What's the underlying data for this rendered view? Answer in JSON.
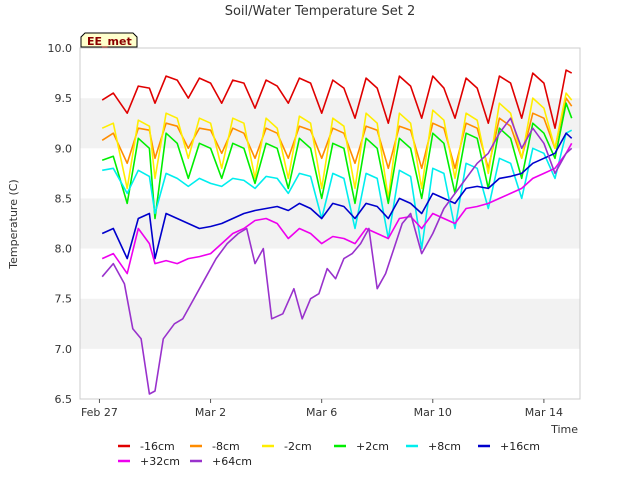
{
  "chart_data": {
    "type": "line",
    "title": "Soil/Water Temperature Set 2",
    "xlabel": "Time",
    "ylabel": "Temperature (C)",
    "badge": "EE_met",
    "xlim": [
      -0.7,
      17.3
    ],
    "ylim": [
      6.5,
      10.0
    ],
    "yticks": [
      6.5,
      7.0,
      7.5,
      8.0,
      8.5,
      9.0,
      9.5,
      10.0
    ],
    "ytick_labels": [
      "6.5",
      "7.0",
      "7.5",
      "8.0",
      "8.5",
      "9.0",
      "9.5",
      "10.0"
    ],
    "xticks": [
      0,
      4,
      8,
      12,
      16
    ],
    "xtick_labels": [
      "Feb 27",
      "Mar 2",
      "Mar 6",
      "Mar 10",
      "Mar 14"
    ],
    "grid": "horizontal bands",
    "legend_position": "bottom",
    "series": [
      {
        "name": "-16cm",
        "color": "#e00000",
        "x": [
          0.1,
          0.5,
          1.0,
          1.4,
          1.8,
          2.0,
          2.4,
          2.8,
          3.2,
          3.6,
          4.0,
          4.4,
          4.8,
          5.2,
          5.6,
          6.0,
          6.4,
          6.8,
          7.2,
          7.6,
          8.0,
          8.4,
          8.8,
          9.2,
          9.6,
          10.0,
          10.4,
          10.8,
          11.2,
          11.6,
          12.0,
          12.4,
          12.8,
          13.2,
          13.6,
          14.0,
          14.4,
          14.8,
          15.2,
          15.6,
          16.0,
          16.4,
          16.8,
          17.0
        ],
        "y": [
          9.48,
          9.55,
          9.35,
          9.62,
          9.6,
          9.45,
          9.72,
          9.68,
          9.5,
          9.7,
          9.65,
          9.45,
          9.68,
          9.65,
          9.4,
          9.68,
          9.62,
          9.45,
          9.7,
          9.65,
          9.35,
          9.68,
          9.6,
          9.3,
          9.7,
          9.6,
          9.25,
          9.72,
          9.62,
          9.3,
          9.72,
          9.6,
          9.3,
          9.7,
          9.6,
          9.25,
          9.72,
          9.65,
          9.3,
          9.75,
          9.65,
          9.2,
          9.78,
          9.75
        ]
      },
      {
        "name": "-8cm",
        "color": "#ff8c00",
        "x": [
          0.1,
          0.5,
          1.0,
          1.4,
          1.8,
          2.0,
          2.4,
          2.8,
          3.2,
          3.6,
          4.0,
          4.4,
          4.8,
          5.2,
          5.6,
          6.0,
          6.4,
          6.8,
          7.2,
          7.6,
          8.0,
          8.4,
          8.8,
          9.2,
          9.6,
          10.0,
          10.4,
          10.8,
          11.2,
          11.6,
          12.0,
          12.4,
          12.8,
          13.2,
          13.6,
          14.0,
          14.4,
          14.8,
          15.2,
          15.6,
          16.0,
          16.4,
          16.8,
          17.0
        ],
        "y": [
          9.08,
          9.15,
          8.85,
          9.2,
          9.18,
          8.9,
          9.25,
          9.22,
          9.0,
          9.2,
          9.18,
          8.95,
          9.2,
          9.15,
          8.9,
          9.2,
          9.15,
          8.9,
          9.22,
          9.18,
          8.9,
          9.2,
          9.15,
          8.85,
          9.22,
          9.18,
          8.8,
          9.22,
          9.18,
          8.8,
          9.25,
          9.2,
          8.8,
          9.25,
          9.2,
          8.8,
          9.3,
          9.22,
          8.9,
          9.35,
          9.3,
          9.0,
          9.5,
          9.42
        ]
      },
      {
        "name": "-2cm",
        "color": "#ffee00",
        "x": [
          0.1,
          0.5,
          1.0,
          1.4,
          1.8,
          2.0,
          2.4,
          2.8,
          3.2,
          3.6,
          4.0,
          4.4,
          4.8,
          5.2,
          5.6,
          6.0,
          6.4,
          6.8,
          7.2,
          7.6,
          8.0,
          8.4,
          8.8,
          9.2,
          9.6,
          10.0,
          10.4,
          10.8,
          11.2,
          11.6,
          12.0,
          12.4,
          12.8,
          13.2,
          13.6,
          14.0,
          14.4,
          14.8,
          15.2,
          15.6,
          16.0,
          16.4,
          16.8,
          17.0
        ],
        "y": [
          9.2,
          9.25,
          8.6,
          9.28,
          9.22,
          8.7,
          9.35,
          9.3,
          8.9,
          9.3,
          9.25,
          8.8,
          9.3,
          9.25,
          8.7,
          9.3,
          9.2,
          8.7,
          9.32,
          9.25,
          8.6,
          9.3,
          9.22,
          8.6,
          9.35,
          9.25,
          8.5,
          9.35,
          9.25,
          8.6,
          9.38,
          9.28,
          8.7,
          9.35,
          9.28,
          8.75,
          9.45,
          9.35,
          8.9,
          9.5,
          9.4,
          9.0,
          9.55,
          9.48
        ]
      },
      {
        "name": "+2cm",
        "color": "#00ee00",
        "x": [
          0.1,
          0.5,
          1.0,
          1.4,
          1.8,
          2.0,
          2.4,
          2.8,
          3.2,
          3.6,
          4.0,
          4.4,
          4.8,
          5.2,
          5.6,
          6.0,
          6.4,
          6.8,
          7.2,
          7.6,
          8.0,
          8.4,
          8.8,
          9.2,
          9.6,
          10.0,
          10.4,
          10.8,
          11.2,
          11.6,
          12.0,
          12.4,
          12.8,
          13.2,
          13.6,
          14.0,
          14.4,
          14.8,
          15.2,
          15.6,
          16.0,
          16.4,
          16.8,
          17.0
        ],
        "y": [
          8.88,
          8.92,
          8.45,
          9.1,
          9.0,
          8.3,
          9.15,
          9.05,
          8.7,
          9.05,
          9.0,
          8.7,
          9.05,
          9.0,
          8.65,
          9.05,
          9.0,
          8.6,
          9.1,
          9.0,
          8.5,
          9.05,
          9.0,
          8.45,
          9.1,
          9.0,
          8.45,
          9.1,
          9.0,
          8.5,
          9.15,
          9.05,
          8.55,
          9.15,
          9.1,
          8.6,
          9.2,
          9.1,
          8.7,
          9.25,
          9.15,
          8.9,
          9.45,
          9.3
        ]
      },
      {
        "name": "+8cm",
        "color": "#00eeee",
        "x": [
          0.1,
          0.5,
          1.0,
          1.4,
          1.8,
          2.0,
          2.4,
          2.8,
          3.2,
          3.6,
          4.0,
          4.4,
          4.8,
          5.2,
          5.6,
          6.0,
          6.4,
          6.8,
          7.2,
          7.6,
          8.0,
          8.4,
          8.8,
          9.2,
          9.6,
          10.0,
          10.4,
          10.8,
          11.2,
          11.6,
          12.0,
          12.4,
          12.8,
          13.2,
          13.6,
          14.0,
          14.4,
          14.8,
          15.2,
          15.6,
          16.0,
          16.4,
          16.8,
          17.0
        ],
        "y": [
          8.78,
          8.8,
          8.55,
          8.78,
          8.72,
          8.35,
          8.75,
          8.7,
          8.62,
          8.7,
          8.65,
          8.62,
          8.7,
          8.68,
          8.6,
          8.72,
          8.7,
          8.55,
          8.75,
          8.72,
          8.3,
          8.75,
          8.7,
          8.2,
          8.75,
          8.7,
          8.1,
          8.78,
          8.72,
          8.0,
          8.8,
          8.75,
          8.2,
          8.85,
          8.8,
          8.4,
          8.9,
          8.85,
          8.5,
          9.0,
          8.95,
          8.7,
          9.15,
          9.18
        ]
      },
      {
        "name": "+16cm",
        "color": "#0000cc",
        "x": [
          0.1,
          0.5,
          1.0,
          1.4,
          1.8,
          2.0,
          2.4,
          2.8,
          3.2,
          3.6,
          4.0,
          4.4,
          4.8,
          5.2,
          5.6,
          6.0,
          6.4,
          6.8,
          7.2,
          7.6,
          8.0,
          8.4,
          8.8,
          9.2,
          9.6,
          10.0,
          10.4,
          10.8,
          11.2,
          11.6,
          12.0,
          12.4,
          12.8,
          13.2,
          13.6,
          14.0,
          14.4,
          14.8,
          15.2,
          15.6,
          16.0,
          16.4,
          16.8,
          17.0
        ],
        "y": [
          8.15,
          8.2,
          7.9,
          8.3,
          8.35,
          7.9,
          8.35,
          8.3,
          8.25,
          8.2,
          8.22,
          8.25,
          8.3,
          8.35,
          8.38,
          8.4,
          8.42,
          8.38,
          8.45,
          8.4,
          8.3,
          8.45,
          8.42,
          8.3,
          8.45,
          8.42,
          8.3,
          8.5,
          8.45,
          8.35,
          8.55,
          8.5,
          8.45,
          8.6,
          8.62,
          8.6,
          8.7,
          8.72,
          8.75,
          8.85,
          8.9,
          8.95,
          9.15,
          9.1
        ]
      },
      {
        "name": "+32cm",
        "color": "#ee00ee",
        "x": [
          0.1,
          0.5,
          1.0,
          1.4,
          1.8,
          2.0,
          2.4,
          2.8,
          3.2,
          3.6,
          4.0,
          4.4,
          4.8,
          5.2,
          5.6,
          6.0,
          6.4,
          6.8,
          7.2,
          7.6,
          8.0,
          8.4,
          8.8,
          9.2,
          9.6,
          10.0,
          10.4,
          10.8,
          11.2,
          11.6,
          12.0,
          12.4,
          12.8,
          13.2,
          13.6,
          14.0,
          14.4,
          14.8,
          15.2,
          15.6,
          16.0,
          16.4,
          16.8,
          17.0
        ],
        "y": [
          7.9,
          7.95,
          7.75,
          8.2,
          8.05,
          7.85,
          7.88,
          7.85,
          7.9,
          7.92,
          7.95,
          8.05,
          8.15,
          8.2,
          8.28,
          8.3,
          8.25,
          8.1,
          8.2,
          8.15,
          8.05,
          8.12,
          8.1,
          8.05,
          8.2,
          8.15,
          8.1,
          8.3,
          8.32,
          8.2,
          8.35,
          8.3,
          8.25,
          8.4,
          8.42,
          8.45,
          8.5,
          8.55,
          8.6,
          8.7,
          8.75,
          8.8,
          8.95,
          9.05
        ]
      },
      {
        "name": "+64cm",
        "color": "#9932cc",
        "x": [
          0.1,
          0.5,
          0.9,
          1.2,
          1.5,
          1.8,
          2.0,
          2.3,
          2.7,
          3.0,
          3.4,
          3.8,
          4.2,
          4.6,
          5.0,
          5.3,
          5.6,
          5.9,
          6.2,
          6.6,
          7.0,
          7.3,
          7.6,
          7.9,
          8.2,
          8.5,
          8.8,
          9.1,
          9.4,
          9.7,
          10.0,
          10.3,
          10.6,
          10.9,
          11.2,
          11.6,
          12.0,
          12.4,
          12.8,
          13.2,
          13.6,
          14.0,
          14.4,
          14.8,
          15.2,
          15.6,
          16.0,
          16.4,
          16.8,
          17.0
        ],
        "y": [
          7.72,
          7.85,
          7.65,
          7.2,
          7.1,
          6.55,
          6.58,
          7.1,
          7.25,
          7.3,
          7.5,
          7.7,
          7.9,
          8.05,
          8.15,
          8.2,
          7.85,
          8.0,
          7.3,
          7.35,
          7.6,
          7.3,
          7.5,
          7.55,
          7.8,
          7.7,
          7.9,
          7.95,
          8.05,
          8.2,
          7.6,
          7.75,
          8.0,
          8.25,
          8.35,
          7.95,
          8.15,
          8.4,
          8.55,
          8.7,
          8.85,
          8.95,
          9.15,
          9.3,
          9.0,
          9.2,
          9.05,
          8.75,
          8.95,
          9.0
        ]
      }
    ]
  }
}
